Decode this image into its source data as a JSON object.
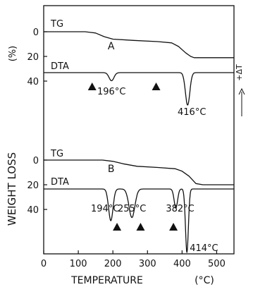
{
  "chart_data": {
    "type": "line",
    "xlabel": "TEMPERATURE",
    "xunit": "(°C)",
    "ylabel": "WEIGHT LOSS",
    "yunit": "(%)",
    "right_label": "+ΔT",
    "xlim": [
      0,
      550
    ],
    "x_ticks": [
      "0",
      "100",
      "200",
      "300",
      "400",
      "500"
    ],
    "y_ticks": [
      "0",
      "20",
      "40"
    ],
    "grid": false,
    "panels": [
      {
        "label": "A",
        "tg_label": "TG",
        "dta_label": "DTA",
        "tg": {
          "x": [
            0,
            120,
            150,
            175,
            200,
            260,
            330,
            370,
            390,
            410,
            425,
            435,
            460,
            550
          ],
          "y": [
            0,
            0,
            1,
            4,
            6,
            7,
            8,
            9,
            12,
            17,
            20,
            21,
            21,
            21
          ]
        },
        "dta_peaks": [
          {
            "temp": 196,
            "label": "196°C",
            "depth": 0.25
          },
          {
            "temp": 416,
            "label": "416°C",
            "depth": 1.0
          }
        ],
        "markers_x": [
          140,
          325
        ]
      },
      {
        "label": "B",
        "tg_label": "TG",
        "dta_label": "DTA",
        "tg": {
          "x": [
            0,
            170,
            200,
            230,
            270,
            330,
            380,
            400,
            420,
            440,
            460,
            550
          ],
          "y": [
            0,
            0,
            1,
            3,
            5,
            6,
            7,
            9,
            13,
            19,
            20,
            20
          ]
        },
        "dta_peaks": [
          {
            "temp": 194,
            "label": "194°C",
            "depth": 0.5
          },
          {
            "temp": 255,
            "label": "255°C",
            "depth": 0.45
          },
          {
            "temp": 382,
            "label": "382°C",
            "depth": 0.3
          },
          {
            "temp": 414,
            "label": "414°C",
            "depth": 1.0
          }
        ],
        "markers_x": [
          212,
          280,
          375
        ]
      }
    ]
  }
}
